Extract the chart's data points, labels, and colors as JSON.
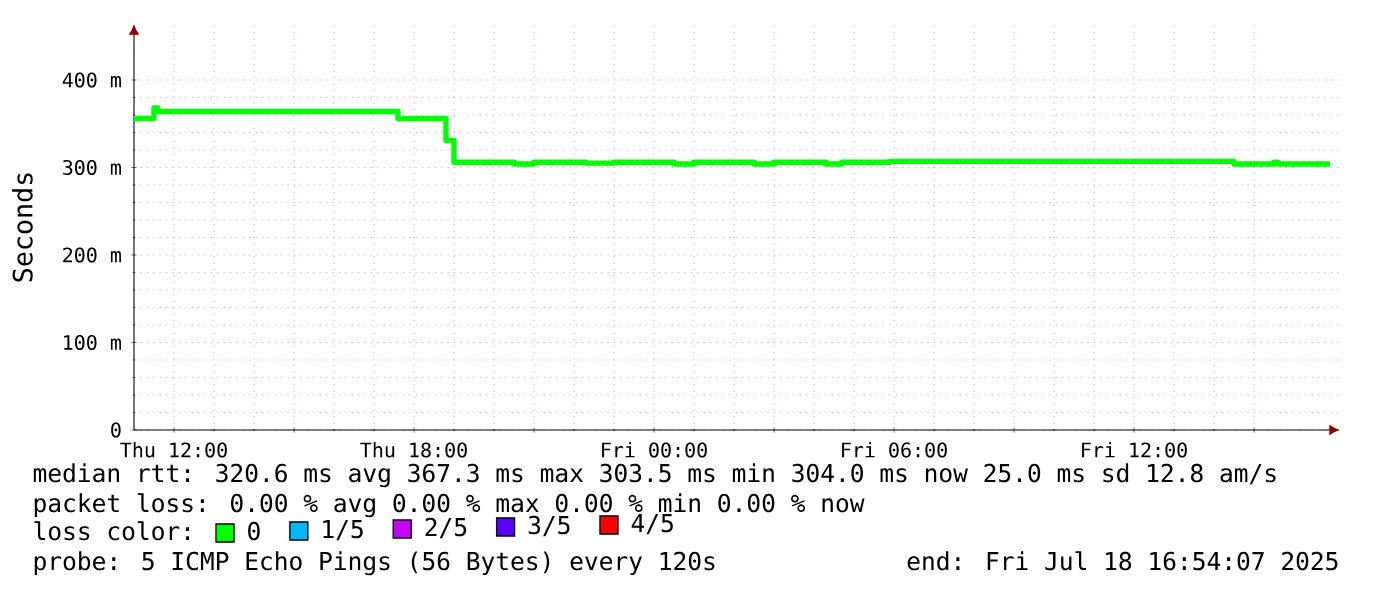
{
  "chart_data": {
    "type": "step",
    "ylabel": "Seconds",
    "legend_title": "loss color:",
    "legend": "bottom",
    "grid": true,
    "marker": "none",
    "line_style": "solid",
    "xlim": [
      "2025-07-17T11:00",
      "2025-07-18T17:09"
    ],
    "ylim": [
      0,
      464
    ],
    "xticks": [
      {
        "value": "2025-07-17T12:00",
        "label": "Thu 12:00"
      },
      {
        "value": "2025-07-17T15:00",
        "label": null
      },
      {
        "value": "2025-07-17T18:00",
        "label": "Thu 18:00"
      },
      {
        "value": "2025-07-17T21:00",
        "label": null
      },
      {
        "value": "2025-07-18T00:00",
        "label": "Fri 00:00"
      },
      {
        "value": "2025-07-18T03:00",
        "label": null
      },
      {
        "value": "2025-07-18T06:00",
        "label": "Fri 06:00"
      },
      {
        "value": "2025-07-18T09:00",
        "label": null
      },
      {
        "value": "2025-07-18T12:00",
        "label": "Fri 12:00"
      },
      {
        "value": "2025-07-18T15:00",
        "label": null
      }
    ],
    "yticks": [
      0,
      {
        "value": 100,
        "label": "100 m"
      },
      {
        "value": 200,
        "label": "200 m"
      },
      {
        "value": 300,
        "label": "300 m"
      },
      {
        "value": 400,
        "label": "400 m"
      }
    ],
    "x": [
      "2025-07-17T11:00",
      "2025-07-17T11:30",
      "2025-07-17T11:36",
      "2025-07-17T17:36",
      "2025-07-17T18:48",
      "2025-07-17T19:00",
      "2025-07-17T20:30",
      "2025-07-17T21:00",
      "2025-07-17T22:18",
      "2025-07-17T23:00",
      "2025-07-18T00:30",
      "2025-07-18T01:00",
      "2025-07-18T02:30",
      "2025-07-18T03:00",
      "2025-07-18T04:18",
      "2025-07-18T04:42",
      "2025-07-18T05:54",
      "2025-07-18T14:30",
      "2025-07-18T15:30",
      "2025-07-18T15:36",
      "2025-07-18T16:54"
    ],
    "series": [
      {
        "name": "0",
        "color": "#00ff00",
        "values": [
          356,
          368,
          364,
          356,
          331,
          306,
          304,
          306,
          305,
          306,
          304,
          306,
          304,
          306,
          304,
          306,
          307,
          304,
          306,
          304,
          304
        ]
      },
      {
        "name": "1/5",
        "color": "#00b8ff",
        "values": [
          null,
          null,
          null,
          null,
          null,
          null,
          null,
          null,
          null,
          null,
          null,
          null,
          null,
          null,
          null,
          null,
          null,
          null,
          null,
          null,
          null
        ]
      },
      {
        "name": "2/5",
        "color": "#c800ff",
        "values": [
          null,
          null,
          null,
          null,
          null,
          null,
          null,
          null,
          null,
          null,
          null,
          null,
          null,
          null,
          null,
          null,
          null,
          null,
          null,
          null,
          null
        ]
      },
      {
        "name": "3/5",
        "color": "#5a00ff",
        "values": [
          null,
          null,
          null,
          null,
          null,
          null,
          null,
          null,
          null,
          null,
          null,
          null,
          null,
          null,
          null,
          null,
          null,
          null,
          null,
          null,
          null
        ]
      },
      {
        "name": "4/5",
        "color": "#ff0000",
        "values": [
          null,
          null,
          null,
          null,
          null,
          null,
          null,
          null,
          null,
          null,
          null,
          null,
          null,
          null,
          null,
          null,
          null,
          null,
          null,
          null,
          null
        ]
      }
    ],
    "annotations": [
      "median rtt: 320.6 ms avg 367.3 ms max 303.5 ms min 304.0 ms now 25.0 ms sd 12.8 am/s",
      "packet loss: 0.00 % avg 0.00 % max 0.00 % min 0.00 % now",
      "probe: 5 ICMP Echo Pings (56 Bytes) every 120s",
      "end: Fri Jul 18 16:54:07 2025"
    ]
  }
}
